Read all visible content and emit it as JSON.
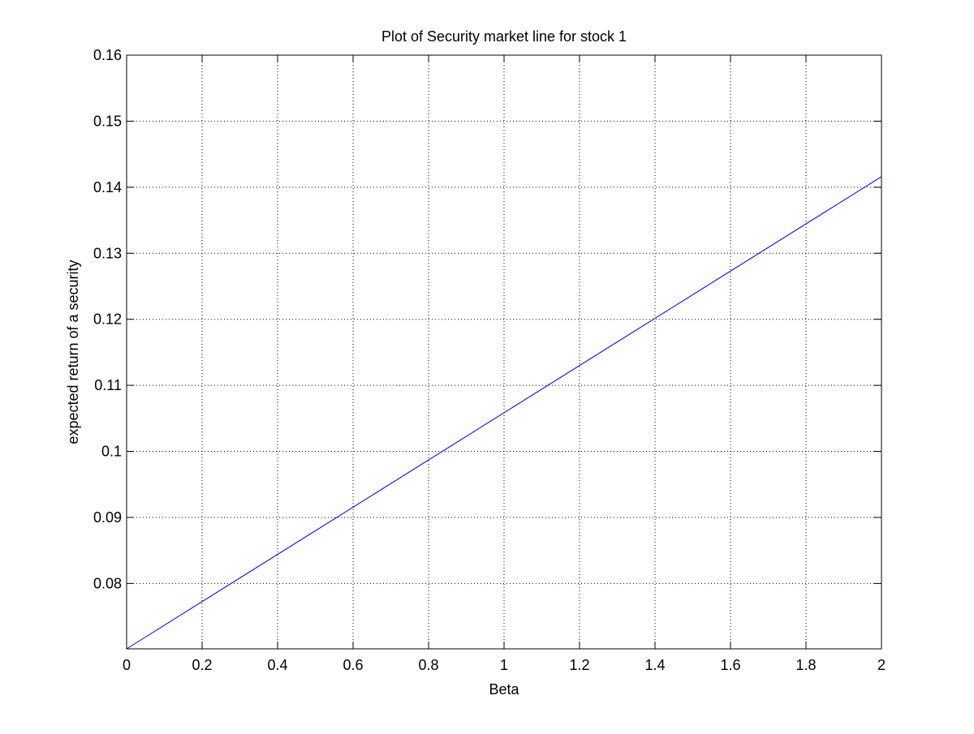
{
  "chart_data": {
    "type": "line",
    "title": "Plot of Security market line for stock 1",
    "xlabel": "Beta",
    "ylabel": "expected return of a security",
    "xlim": [
      0,
      2
    ],
    "ylim": [
      0.0701,
      0.16
    ],
    "x_ticks": [
      0,
      0.2,
      0.4,
      0.6,
      0.8,
      1,
      1.2,
      1.4,
      1.6,
      1.8,
      2
    ],
    "x_tick_labels": [
      "0",
      "0.2",
      "0.4",
      "0.6",
      "0.8",
      "1",
      "1.2",
      "1.4",
      "1.6",
      "1.8",
      "2"
    ],
    "y_ticks": [
      0.08,
      0.09,
      0.1,
      0.11,
      0.12,
      0.13,
      0.14,
      0.15,
      0.16
    ],
    "y_tick_labels": [
      "0.08",
      "0.09",
      "0.1",
      "0.11",
      "0.12",
      "0.13",
      "0.14",
      "0.15",
      "0.16"
    ],
    "grid": true,
    "series": [
      {
        "color": "#0000ff",
        "x": [
          0,
          2
        ],
        "y": [
          0.0701,
          0.1416
        ]
      }
    ]
  }
}
